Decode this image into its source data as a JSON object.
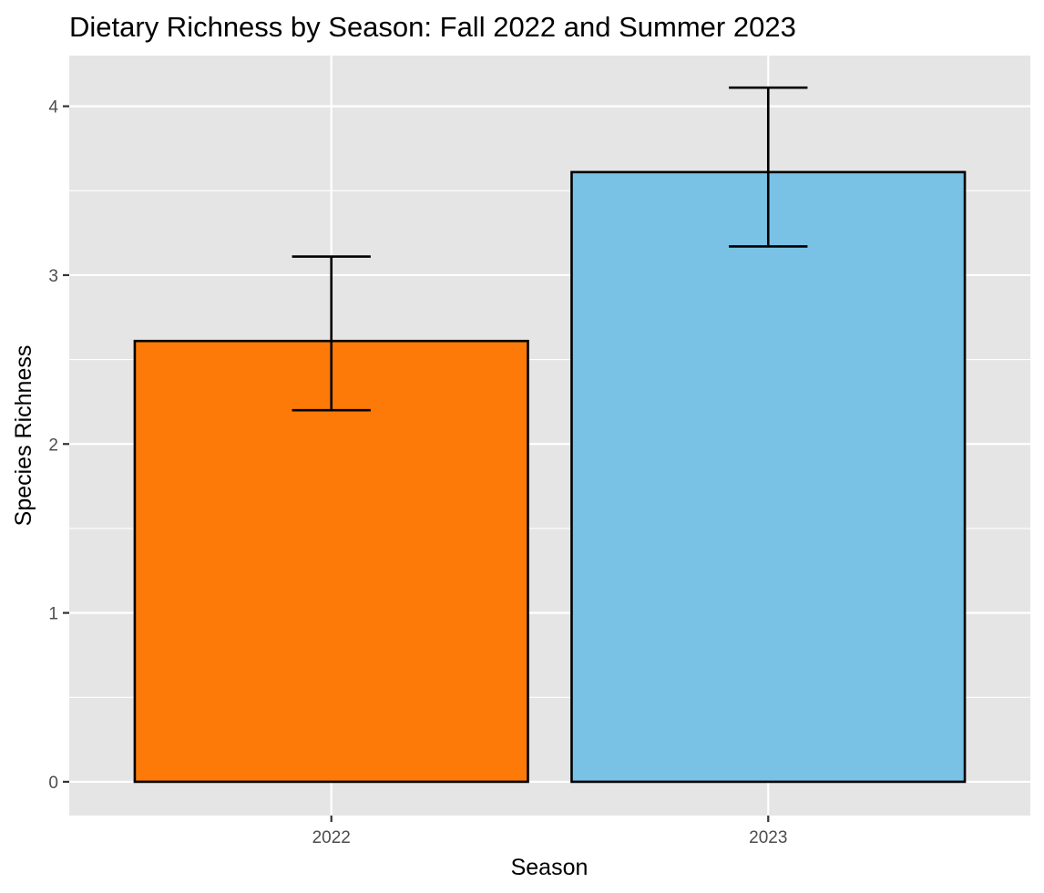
{
  "chart_data": {
    "type": "bar",
    "title": "Dietary Richness by Season: Fall 2022 and Summer 2023",
    "xlabel": "Season",
    "ylabel": "Species Richness",
    "categories": [
      "2022",
      "2023"
    ],
    "values": [
      2.61,
      3.61
    ],
    "error_low": [
      2.2,
      3.17
    ],
    "error_high": [
      3.11,
      4.11
    ],
    "bar_colors": [
      "#FD7A08",
      "#79C2E6"
    ],
    "bar_outline": "#000000",
    "ylim": [
      -0.2,
      4.3
    ],
    "yticks": [
      0,
      1,
      2,
      3,
      4
    ],
    "ytick_labels": [
      "0",
      "1",
      "2",
      "3",
      "4"
    ],
    "grid": true,
    "legend": "none",
    "panel_background": "#e5e5e5"
  }
}
